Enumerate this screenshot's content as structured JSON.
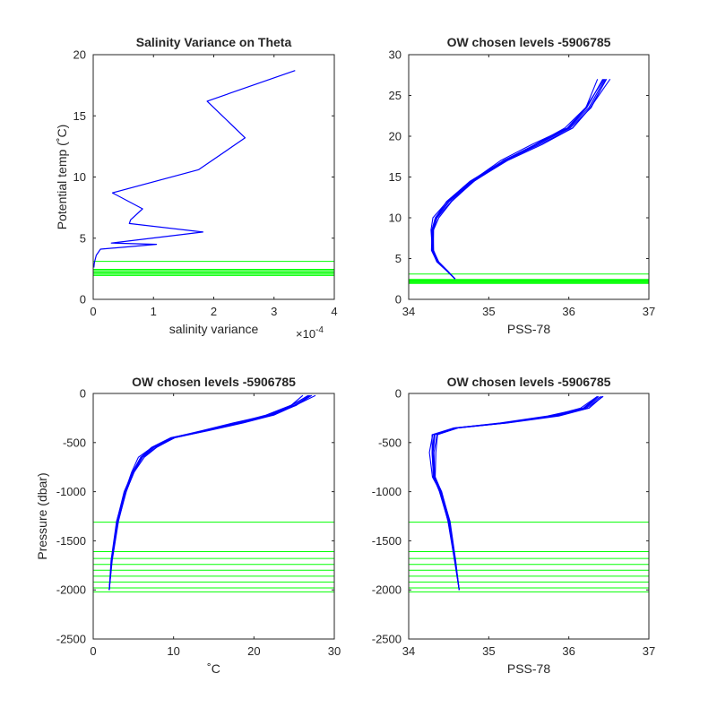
{
  "chart_data": [
    {
      "id": "salvar",
      "type": "line",
      "title": "Salinity Variance on Theta",
      "xlabel": "salinity variance",
      "ylabel": "Potential temp (˚C)",
      "x_exponent_label": "×10",
      "x_exponent_value": "-4",
      "xlim": [
        0,
        4
      ],
      "ylim": [
        0,
        20
      ],
      "xticks": [
        "0",
        "1",
        "2",
        "3",
        "4"
      ],
      "yticks": [
        "0",
        "5",
        "10",
        "15",
        "20"
      ],
      "series": [
        {
          "color": "#0000ff",
          "x": [
            3.35,
            1.89,
            2.52,
            1.75,
            0.32,
            0.82,
            0.62,
            0.6,
            1.82,
            0.3,
            1.05,
            0.12,
            0.05,
            0.02,
            0.01
          ],
          "y": [
            18.7,
            16.2,
            13.2,
            10.6,
            8.7,
            7.4,
            6.5,
            6.2,
            5.5,
            4.6,
            4.5,
            4.1,
            3.6,
            3.0,
            2.6
          ]
        }
      ],
      "reference_levels": [
        3.1,
        2.45,
        2.35,
        2.25,
        2.15,
        2.05,
        1.95
      ],
      "reference_color": "#00ff00"
    },
    {
      "id": "ts",
      "type": "line",
      "title": "OW chosen levels -5906785",
      "xlabel": "PSS-78",
      "ylabel": "",
      "xlim": [
        34,
        37
      ],
      "ylim": [
        0,
        30
      ],
      "xticks": [
        "34",
        "35",
        "36",
        "37"
      ],
      "yticks": [
        "0",
        "5",
        "10",
        "15",
        "20",
        "25",
        "30"
      ],
      "series": [
        {
          "color": "#0000ff",
          "x": [
            34.58,
            34.48,
            34.36,
            34.3,
            34.3,
            34.34,
            34.5,
            34.8,
            35.2,
            35.6,
            36.0,
            36.25,
            36.45
          ],
          "y": [
            2.5,
            3.5,
            4.6,
            6.0,
            8.5,
            10.0,
            12.0,
            14.5,
            17.0,
            19.0,
            21.0,
            23.5,
            27.0
          ]
        }
      ],
      "reference_levels": [
        3.1,
        2.45,
        2.35,
        2.25,
        2.15,
        2.05,
        1.95
      ],
      "reference_color": "#00ff00"
    },
    {
      "id": "tp",
      "type": "line",
      "title": "OW chosen levels -5906785",
      "xlabel": "˚C",
      "ylabel": "Pressure (dbar)",
      "xlim": [
        0,
        30
      ],
      "ylim": [
        -2500,
        0
      ],
      "xticks": [
        "0",
        "10",
        "20",
        "30"
      ],
      "yticks": [
        "-2500",
        "-2000",
        "-1500",
        "-1000",
        "-500",
        "0"
      ],
      "series": [
        {
          "color": "#0000ff",
          "x": [
            2.0,
            2.3,
            3.0,
            4.0,
            5.0,
            6.0,
            7.5,
            10.0,
            14.0,
            18.0,
            22.0,
            25.0,
            27.0
          ],
          "y": [
            -2000,
            -1700,
            -1300,
            -1000,
            -800,
            -650,
            -550,
            -450,
            -380,
            -300,
            -220,
            -120,
            -20
          ]
        }
      ],
      "reference_levels": [
        -1310,
        -1610,
        -1680,
        -1740,
        -1800,
        -1860,
        -1920,
        -1980,
        -2020
      ],
      "reference_color": "#00ff00"
    },
    {
      "id": "sp",
      "type": "line",
      "title": "OW chosen levels -5906785",
      "xlabel": "PSS-78",
      "ylabel": "",
      "xlim": [
        34,
        37
      ],
      "ylim": [
        -2500,
        0
      ],
      "xticks": [
        "34",
        "35",
        "36",
        "37"
      ],
      "yticks": [
        "-2500",
        "-2000",
        "-1500",
        "-1000",
        "-500",
        "0"
      ],
      "series": [
        {
          "color": "#0000ff",
          "x": [
            34.63,
            34.58,
            34.5,
            34.4,
            34.32,
            34.3,
            34.32,
            34.6,
            35.2,
            35.8,
            36.2,
            36.4
          ],
          "y": [
            -2000,
            -1700,
            -1300,
            -1000,
            -850,
            -600,
            -420,
            -350,
            -300,
            -230,
            -150,
            -30
          ]
        }
      ],
      "reference_levels": [
        -1310,
        -1610,
        -1680,
        -1740,
        -1800,
        -1860,
        -1920,
        -1980,
        -2020
      ],
      "reference_color": "#00ff00"
    }
  ]
}
